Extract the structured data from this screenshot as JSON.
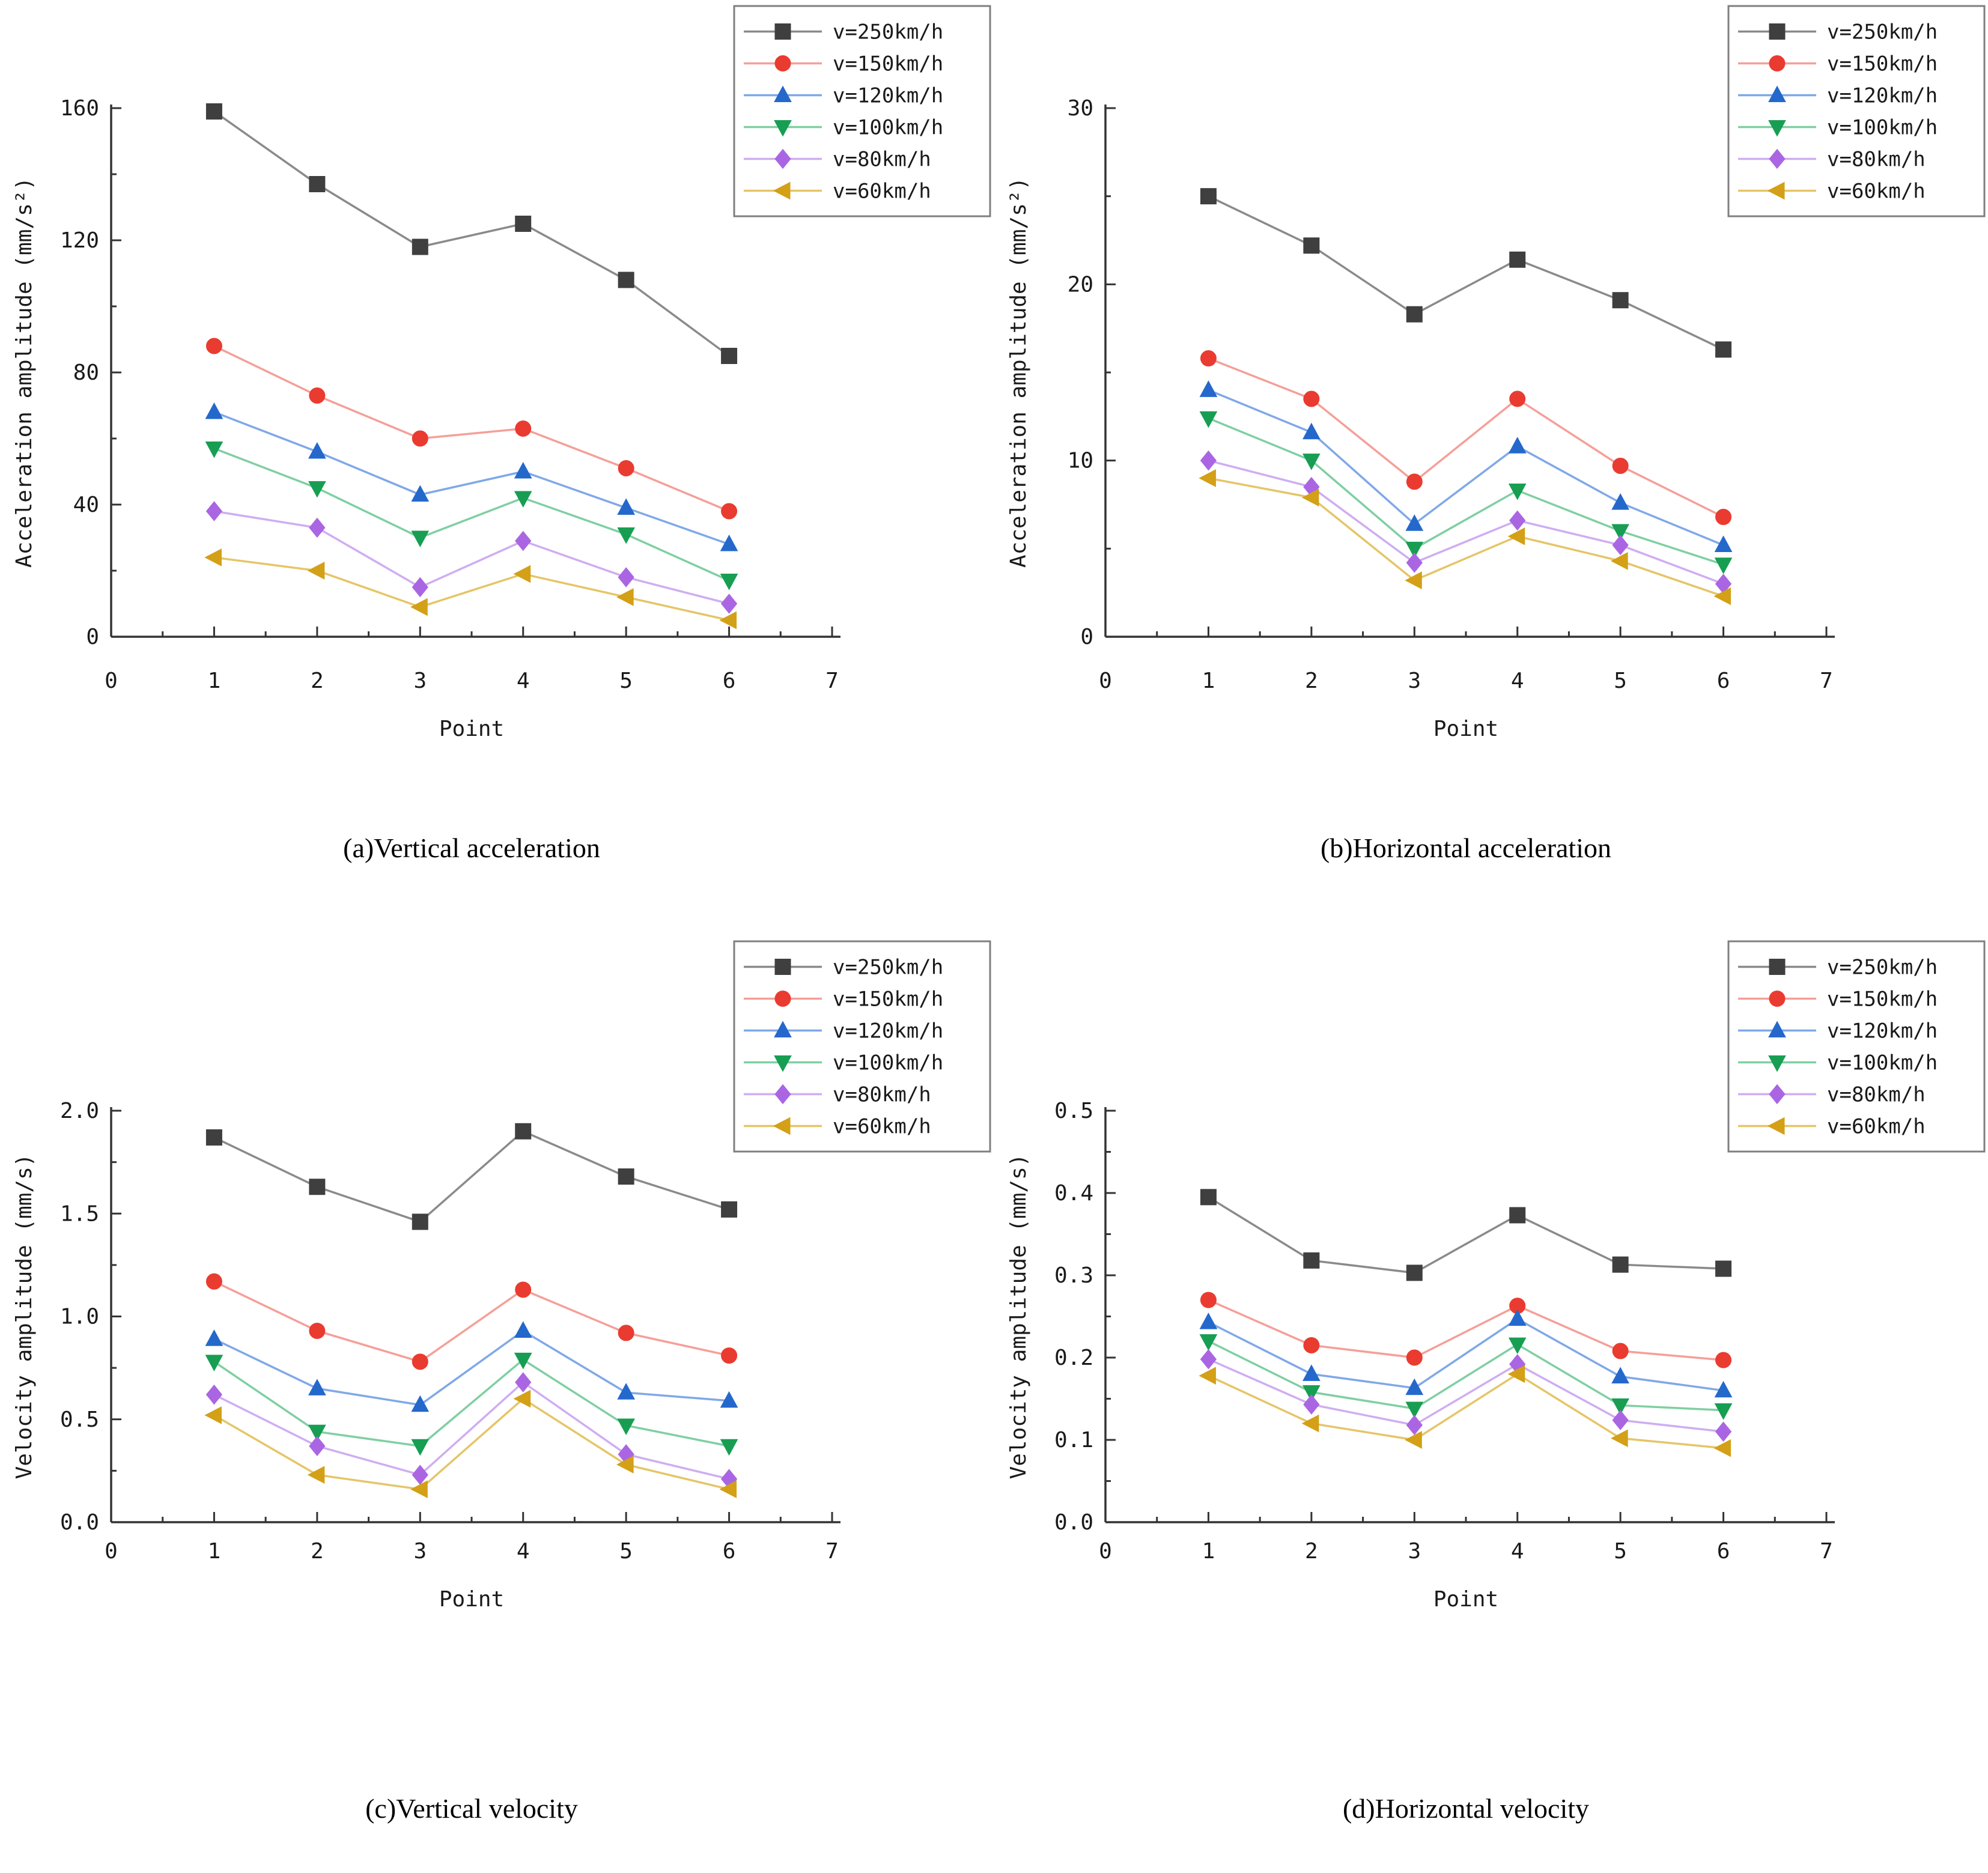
{
  "page": {
    "background": "#ffffff"
  },
  "legend": {
    "items": [
      {
        "label": "v=250km/h",
        "marker": "square",
        "color": "#3f3f3f",
        "line_color": "#8a8a8a"
      },
      {
        "label": "v=150km/h",
        "marker": "circle",
        "color": "#ea3b30",
        "line_color": "#f59f99"
      },
      {
        "label": "v=120km/h",
        "marker": "triangle-up",
        "color": "#2468cc",
        "line_color": "#7fa8e8"
      },
      {
        "label": "v=100km/h",
        "marker": "triangle-down",
        "color": "#179e52",
        "line_color": "#7fcfa2"
      },
      {
        "label": "v=80km/h",
        "marker": "diamond",
        "color": "#aa66e2",
        "line_color": "#cfadf2"
      },
      {
        "label": "v=60km/h",
        "marker": "triangle-left",
        "color": "#d3a017",
        "line_color": "#e5c567"
      }
    ]
  },
  "chart_data": [
    {
      "id": "a",
      "type": "line",
      "caption": "(a)Vertical acceleration",
      "xlabel": "Point",
      "ylabel": "Acceleration amplitude (mm/s²)",
      "xlim": [
        0,
        7
      ],
      "ylim": [
        0,
        160
      ],
      "x": [
        1,
        2,
        3,
        4,
        5,
        6
      ],
      "xtick_labels": [
        "0",
        "1",
        "2",
        "3",
        "4",
        "5",
        "6",
        "7"
      ],
      "ytick_labels": [
        "0",
        "40",
        "80",
        "120",
        "160"
      ],
      "y_major_step": 40,
      "y_minor_step": 20,
      "x_minor_step": 0.5,
      "grid": false,
      "legend_position": "top-right",
      "series": [
        {
          "name": "v=250km/h",
          "values": [
            159,
            137,
            118,
            125,
            108,
            85
          ]
        },
        {
          "name": "v=150km/h",
          "values": [
            88,
            73,
            60,
            63,
            51,
            38
          ]
        },
        {
          "name": "v=120km/h",
          "values": [
            68,
            56,
            43,
            50,
            39,
            28
          ]
        },
        {
          "name": "v=100km/h",
          "values": [
            57,
            45,
            30,
            42,
            31,
            17
          ]
        },
        {
          "name": "v=80km/h",
          "values": [
            38,
            33,
            15,
            29,
            18,
            10
          ]
        },
        {
          "name": "v=60km/h",
          "values": [
            24,
            20,
            9,
            19,
            12,
            5
          ]
        }
      ]
    },
    {
      "id": "b",
      "type": "line",
      "caption": "(b)Horizontal acceleration",
      "xlabel": "Point",
      "ylabel": "Acceleration amplitude (mm/s²)",
      "xlim": [
        0,
        7
      ],
      "ylim": [
        0,
        30
      ],
      "x": [
        1,
        2,
        3,
        4,
        5,
        6
      ],
      "xtick_labels": [
        "0",
        "1",
        "2",
        "3",
        "4",
        "5",
        "6",
        "7"
      ],
      "ytick_labels": [
        "0",
        "10",
        "20",
        "30"
      ],
      "y_major_step": 10,
      "y_minor_step": 5,
      "x_minor_step": 0.5,
      "grid": false,
      "legend_position": "top-right",
      "series": [
        {
          "name": "v=250km/h",
          "values": [
            25.0,
            22.2,
            18.3,
            21.4,
            19.1,
            16.3
          ]
        },
        {
          "name": "v=150km/h",
          "values": [
            15.8,
            13.5,
            8.8,
            13.5,
            9.7,
            6.8
          ]
        },
        {
          "name": "v=120km/h",
          "values": [
            14.0,
            11.6,
            6.4,
            10.8,
            7.6,
            5.2
          ]
        },
        {
          "name": "v=100km/h",
          "values": [
            12.4,
            10.0,
            5.0,
            8.3,
            6.0,
            4.1
          ]
        },
        {
          "name": "v=80km/h",
          "values": [
            10.0,
            8.5,
            4.2,
            6.6,
            5.2,
            3.0
          ]
        },
        {
          "name": "v=60km/h",
          "values": [
            9.0,
            7.9,
            3.2,
            5.7,
            4.3,
            2.3
          ]
        }
      ]
    },
    {
      "id": "c",
      "type": "line",
      "caption": "(c)Vertical velocity",
      "xlabel": "Point",
      "ylabel": "Velocity amplitude (mm/s)",
      "xlim": [
        0,
        7
      ],
      "ylim": [
        0,
        2.0
      ],
      "x": [
        1,
        2,
        3,
        4,
        5,
        6
      ],
      "xtick_labels": [
        "0",
        "1",
        "2",
        "3",
        "4",
        "5",
        "6",
        "7"
      ],
      "ytick_labels": [
        "0.0",
        "0.5",
        "1.0",
        "1.5",
        "2.0"
      ],
      "y_major_step": 0.5,
      "y_minor_step": 0.25,
      "x_minor_step": 0.5,
      "grid": false,
      "legend_position": "top-right",
      "series": [
        {
          "name": "v=250km/h",
          "values": [
            1.87,
            1.63,
            1.46,
            1.9,
            1.68,
            1.52
          ]
        },
        {
          "name": "v=150km/h",
          "values": [
            1.17,
            0.93,
            0.78,
            1.13,
            0.92,
            0.81
          ]
        },
        {
          "name": "v=120km/h",
          "values": [
            0.89,
            0.65,
            0.57,
            0.93,
            0.63,
            0.59
          ]
        },
        {
          "name": "v=100km/h",
          "values": [
            0.78,
            0.44,
            0.37,
            0.79,
            0.47,
            0.37
          ]
        },
        {
          "name": "v=80km/h",
          "values": [
            0.62,
            0.37,
            0.23,
            0.68,
            0.33,
            0.21
          ]
        },
        {
          "name": "v=60km/h",
          "values": [
            0.52,
            0.23,
            0.16,
            0.6,
            0.28,
            0.16
          ]
        }
      ]
    },
    {
      "id": "d",
      "type": "line",
      "caption": "(d)Horizontal velocity",
      "xlabel": "Point",
      "ylabel": "Velocity amplitude (mm/s)",
      "xlim": [
        0,
        7
      ],
      "ylim": [
        0,
        0.5
      ],
      "x": [
        1,
        2,
        3,
        4,
        5,
        6
      ],
      "xtick_labels": [
        "0",
        "1",
        "2",
        "3",
        "4",
        "5",
        "6",
        "7"
      ],
      "ytick_labels": [
        "0.0",
        "0.1",
        "0.2",
        "0.3",
        "0.4",
        "0.5"
      ],
      "y_major_step": 0.1,
      "y_minor_step": 0.05,
      "x_minor_step": 0.5,
      "grid": false,
      "legend_position": "top-right",
      "series": [
        {
          "name": "v=250km/h",
          "values": [
            0.395,
            0.318,
            0.303,
            0.373,
            0.313,
            0.308
          ]
        },
        {
          "name": "v=150km/h",
          "values": [
            0.27,
            0.215,
            0.2,
            0.263,
            0.208,
            0.197
          ]
        },
        {
          "name": "v=120km/h",
          "values": [
            0.243,
            0.18,
            0.163,
            0.247,
            0.177,
            0.16
          ]
        },
        {
          "name": "v=100km/h",
          "values": [
            0.22,
            0.158,
            0.138,
            0.216,
            0.142,
            0.136
          ]
        },
        {
          "name": "v=80km/h",
          "values": [
            0.198,
            0.143,
            0.118,
            0.192,
            0.124,
            0.11
          ]
        },
        {
          "name": "v=60km/h",
          "values": [
            0.178,
            0.12,
            0.1,
            0.18,
            0.102,
            0.09
          ]
        }
      ]
    }
  ]
}
